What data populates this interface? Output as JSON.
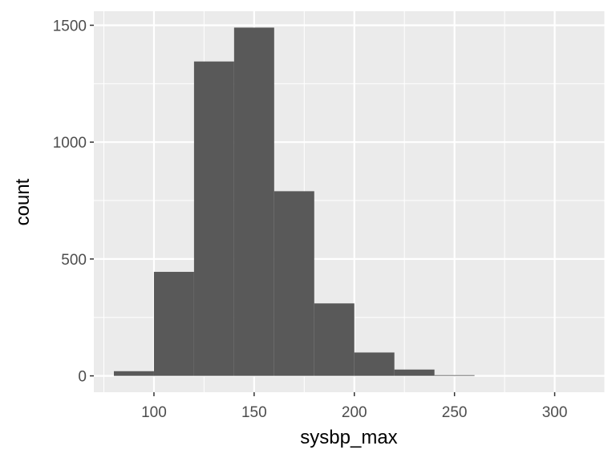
{
  "chart_data": {
    "type": "bar",
    "subtype": "histogram",
    "title": "",
    "xlabel": "sysbp_max",
    "ylabel": "count",
    "xlim": [
      70,
      325
    ],
    "ylim": [
      -70,
      1560
    ],
    "x_ticks": [
      100,
      150,
      200,
      250,
      300
    ],
    "x_tick_labels": [
      "100",
      "150",
      "200",
      "250",
      "300"
    ],
    "y_ticks": [
      0,
      500,
      1000,
      1500
    ],
    "y_tick_labels": [
      "0",
      "500",
      "1000",
      "1500"
    ],
    "bin_edges": [
      80,
      100,
      120,
      140,
      160,
      180,
      200,
      220,
      240,
      260
    ],
    "values": [
      20,
      445,
      1345,
      1490,
      790,
      310,
      100,
      27,
      3
    ],
    "grid": true,
    "legend": "none",
    "colors": {
      "panel": "#ebebeb",
      "grid_major": "#ffffff",
      "bar_fill": "#595959",
      "tick_text": "#4d4d4d",
      "axis_title": "#000000",
      "tick_mark": "#333333"
    }
  }
}
